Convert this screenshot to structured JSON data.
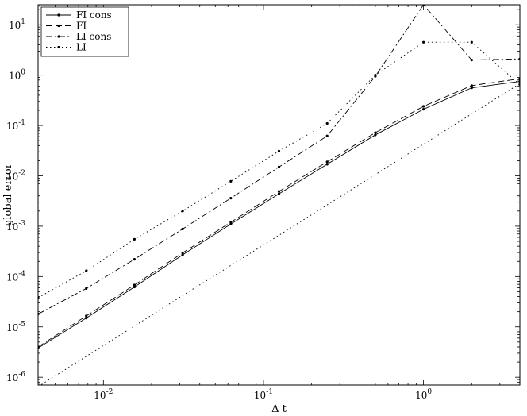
{
  "chart_data": {
    "type": "line",
    "xlabel": "Δ t",
    "ylabel": "global error",
    "x_scale": "log",
    "y_scale": "log",
    "xlim": [
      0.00390625,
      4
    ],
    "ylim": [
      7e-07,
      25
    ],
    "x_tick_labels": [
      {
        "value": 0.01,
        "base": "10",
        "exp": "-2"
      },
      {
        "value": 0.1,
        "base": "10",
        "exp": "-1"
      },
      {
        "value": 1,
        "base": "10",
        "exp": "0"
      }
    ],
    "y_tick_labels": [
      {
        "value": 1e-06,
        "base": "10",
        "exp": "-6"
      },
      {
        "value": 1e-05,
        "base": "10",
        "exp": "-5"
      },
      {
        "value": 0.0001,
        "base": "10",
        "exp": "-4"
      },
      {
        "value": 0.001,
        "base": "10",
        "exp": "-3"
      },
      {
        "value": 0.01,
        "base": "10",
        "exp": "-2"
      },
      {
        "value": 0.1,
        "base": "10",
        "exp": "-1"
      },
      {
        "value": 1,
        "base": "10",
        "exp": "0"
      },
      {
        "value": 10,
        "base": "10",
        "exp": "1"
      }
    ],
    "legend_position": "top-left",
    "grid": false,
    "x": [
      0.00390625,
      0.0078125,
      0.015625,
      0.03125,
      0.0625,
      0.125,
      0.25,
      0.5,
      1,
      2,
      4
    ],
    "series": [
      {
        "name": "FI cons",
        "style": "solid",
        "markers": true,
        "values": [
          3.8e-06,
          1.5e-05,
          6.2e-05,
          0.00027,
          0.0011,
          0.0044,
          0.017,
          0.065,
          0.21,
          0.56,
          0.75
        ]
      },
      {
        "name": "FI",
        "style": "dashed",
        "markers": true,
        "values": [
          4e-06,
          1.65e-05,
          6.8e-05,
          0.000295,
          0.0012,
          0.0049,
          0.019,
          0.072,
          0.24,
          0.62,
          0.85
        ]
      },
      {
        "name": "LI cons",
        "style": "dashdot",
        "markers": true,
        "values": [
          1.8e-05,
          5.8e-05,
          0.00022,
          0.00088,
          0.0036,
          0.015,
          0.062,
          0.95,
          25,
          2.0,
          2.1
        ]
      },
      {
        "name": "LI",
        "style": "dotted",
        "markers": true,
        "values": [
          3.8e-05,
          0.00013,
          0.00055,
          0.002,
          0.0078,
          0.031,
          0.11,
          1.0,
          4.5,
          4.5,
          0.65
        ]
      },
      {
        "name": "",
        "style": "dotted",
        "markers": false,
        "values": [
          6.5e-07,
          2.6e-06,
          1.04e-05,
          4.2e-05,
          0.000166,
          0.00066,
          0.00265,
          0.0106,
          0.0425,
          0.17,
          0.68
        ]
      }
    ]
  }
}
